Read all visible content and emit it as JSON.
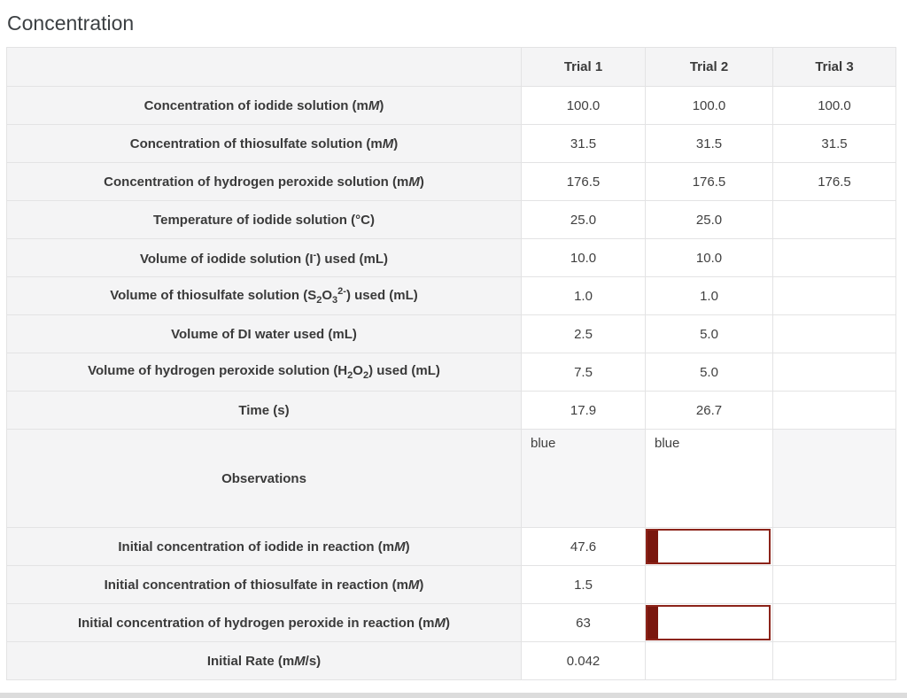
{
  "page": {
    "title": "Concentration"
  },
  "colors": {
    "error_input_bar": "#7a170e",
    "error_input_border": "#8c241a",
    "header_background": "#f4f4f5",
    "cell_border": "#e3e3e4"
  },
  "table": {
    "headers": [
      "",
      "Trial 1",
      "Trial 2",
      "Trial 3"
    ],
    "rows": [
      {
        "label": "Concentration of iodide solution (m<i>M</i>)",
        "values": [
          "100.0",
          "100.0",
          "100.0"
        ]
      },
      {
        "label": "Concentration of thiosulfate solution (m<i>M</i>)",
        "values": [
          "31.5",
          "31.5",
          "31.5"
        ]
      },
      {
        "label": "Concentration of hydrogen peroxide solution (m<i>M</i>)",
        "values": [
          "176.5",
          "176.5",
          "176.5"
        ]
      },
      {
        "label": "Temperature of iodide solution (°C)",
        "values": [
          "25.0",
          "25.0",
          ""
        ]
      },
      {
        "label": "Volume of iodide solution (I<sup>-</sup>) used (mL)",
        "values": [
          "10.0",
          "10.0",
          ""
        ]
      },
      {
        "label": "Volume of thiosulfate solution (S<sub>2</sub>O<sub>3</sub><sup>2-</sup>) used (mL)",
        "values": [
          "1.0",
          "1.0",
          ""
        ]
      },
      {
        "label": "Volume of DI water used (mL)",
        "values": [
          "2.5",
          "5.0",
          ""
        ]
      },
      {
        "label": "Volume of hydrogen peroxide solution (H<sub>2</sub>O<sub>2</sub>) used (mL)",
        "values": [
          "7.5",
          "5.0",
          ""
        ]
      },
      {
        "label": "Time (s)",
        "values": [
          "17.9",
          "26.7",
          ""
        ]
      },
      {
        "label": "Observations",
        "values": [
          "blue",
          "blue",
          ""
        ]
      },
      {
        "label": "Initial concentration of iodide in reaction (m<i>M</i>)",
        "values": [
          "47.6",
          "",
          ""
        ],
        "trial2_error_input": true
      },
      {
        "label": "Initial concentration of thiosulfate in reaction (m<i>M</i>)",
        "values": [
          "1.5",
          "",
          ""
        ]
      },
      {
        "label": "Initial concentration of hydrogen peroxide in reaction (m<i>M</i>)",
        "values": [
          "63",
          "",
          ""
        ],
        "trial2_error_input": true
      },
      {
        "label": "Initial Rate (m<i>M</i>/s)",
        "values": [
          "0.042",
          "",
          ""
        ]
      }
    ]
  }
}
